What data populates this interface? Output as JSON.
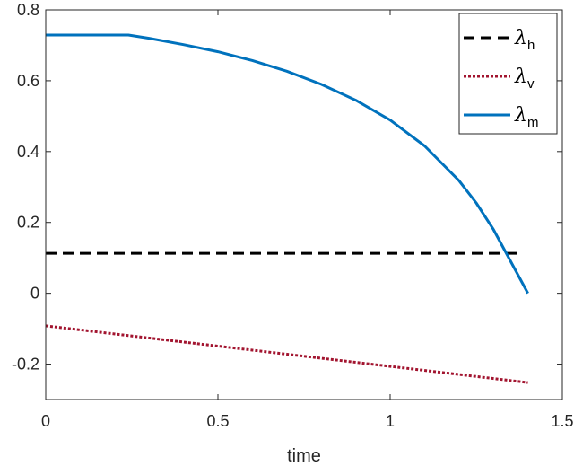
{
  "chart_data": {
    "type": "line",
    "xlabel": "time",
    "ylabel": "",
    "xlim": [
      0,
      1.5
    ],
    "ylim": [
      -0.3,
      0.8
    ],
    "xticks": [
      0,
      0.5,
      1,
      1.5
    ],
    "xtick_labels": [
      "0",
      "0.5",
      "1",
      "1.5"
    ],
    "yticks": [
      -0.2,
      0,
      0.2,
      0.4,
      0.6,
      0.8
    ],
    "ytick_labels": [
      "-0.2",
      "0",
      "0.2",
      "0.4",
      "0.6",
      "0.8"
    ],
    "grid": false,
    "legend_position": "top-right",
    "series": [
      {
        "name": "λ_h",
        "symbol": "λ",
        "subscript": "h",
        "color": "#000000",
        "style": "dashed",
        "points": [
          [
            0,
            0.113
          ],
          [
            1.37,
            0.113
          ]
        ]
      },
      {
        "name": "λ_v",
        "symbol": "λ",
        "subscript": "v",
        "color": "#a2142f",
        "style": "dotted",
        "points": [
          [
            0,
            -0.092
          ],
          [
            1.4,
            -0.252
          ]
        ]
      },
      {
        "name": "λ_m",
        "symbol": "λ",
        "subscript": "m",
        "color": "#0072bd",
        "style": "solid",
        "points": [
          [
            0,
            0.729
          ],
          [
            0.24,
            0.729
          ],
          [
            0.3,
            0.72
          ],
          [
            0.4,
            0.702
          ],
          [
            0.5,
            0.682
          ],
          [
            0.6,
            0.657
          ],
          [
            0.7,
            0.627
          ],
          [
            0.8,
            0.59
          ],
          [
            0.9,
            0.545
          ],
          [
            1.0,
            0.489
          ],
          [
            1.1,
            0.416
          ],
          [
            1.2,
            0.318
          ],
          [
            1.25,
            0.255
          ],
          [
            1.3,
            0.18
          ],
          [
            1.35,
            0.09
          ],
          [
            1.4,
            0.0
          ]
        ]
      }
    ]
  }
}
